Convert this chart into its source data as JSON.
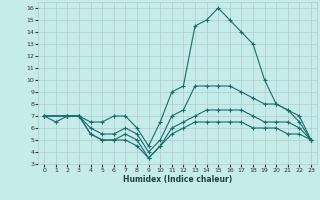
{
  "xlabel": "Humidex (Indice chaleur)",
  "bg_color": "#c5ecea",
  "grid_color": "#b0cccc",
  "line_color": "#1a6b6b",
  "xlim": [
    -0.5,
    23.5
  ],
  "ylim": [
    3,
    16.5
  ],
  "xticks": [
    0,
    1,
    2,
    3,
    4,
    5,
    6,
    7,
    8,
    9,
    10,
    11,
    12,
    13,
    14,
    15,
    16,
    17,
    18,
    19,
    20,
    21,
    22,
    23
  ],
  "yticks": [
    3,
    4,
    5,
    6,
    7,
    8,
    9,
    10,
    11,
    12,
    13,
    14,
    15,
    16
  ],
  "lines": [
    {
      "x": [
        0,
        1,
        2,
        3,
        4,
        5,
        6,
        7,
        8,
        9,
        10,
        11,
        12,
        13,
        14,
        15,
        16,
        17,
        18,
        19,
        20,
        21,
        22,
        23
      ],
      "y": [
        7,
        6.5,
        7,
        7,
        6.5,
        6.5,
        7,
        7,
        6,
        4.5,
        6.5,
        9,
        9.5,
        14.5,
        15,
        16,
        15,
        14,
        13,
        10,
        8,
        7.5,
        7,
        5
      ]
    },
    {
      "x": [
        0,
        2,
        3,
        4,
        5,
        6,
        7,
        8,
        9,
        10,
        11,
        12,
        13,
        14,
        15,
        16,
        17,
        18,
        19,
        20,
        21,
        22,
        23
      ],
      "y": [
        7,
        7,
        7,
        6,
        5.5,
        5.5,
        6,
        5.5,
        4,
        5,
        7,
        7.5,
        9.5,
        9.5,
        9.5,
        9.5,
        9,
        8.5,
        8,
        8,
        7.5,
        6.5,
        5
      ]
    },
    {
      "x": [
        0,
        2,
        3,
        4,
        5,
        6,
        7,
        8,
        9,
        10,
        11,
        12,
        13,
        14,
        15,
        16,
        17,
        18,
        19,
        20,
        21,
        22,
        23
      ],
      "y": [
        7,
        7,
        7,
        5.5,
        5,
        5,
        5.5,
        5,
        3.5,
        4.5,
        6,
        6.5,
        7,
        7.5,
        7.5,
        7.5,
        7.5,
        7,
        6.5,
        6.5,
        6.5,
        6,
        5
      ]
    },
    {
      "x": [
        0,
        2,
        3,
        4,
        5,
        6,
        7,
        8,
        9,
        10,
        11,
        12,
        13,
        14,
        15,
        16,
        17,
        18,
        19,
        20,
        21,
        22,
        23
      ],
      "y": [
        7,
        7,
        7,
        5.5,
        5,
        5,
        5,
        4.5,
        3.5,
        4.5,
        5.5,
        6,
        6.5,
        6.5,
        6.5,
        6.5,
        6.5,
        6,
        6,
        6,
        5.5,
        5.5,
        5
      ]
    }
  ]
}
